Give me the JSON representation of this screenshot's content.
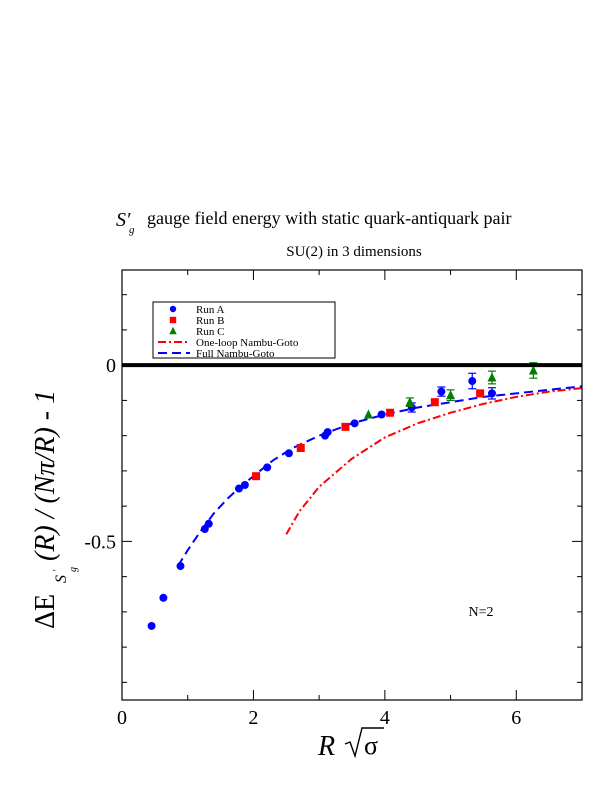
{
  "chart_data": {
    "type": "scatter",
    "title_sym": "S′",
    "title_sub": "g",
    "title": "gauge field energy with static quark-antiquark pair",
    "subtitle": "SU(2) in 3 dimensions",
    "xlabel_main": "R",
    "xlabel_sigma": "σ",
    "ylabel_prefix": "ΔE",
    "ylabel_sub_s": "S",
    "ylabel_sub_g": "g",
    "ylabel_suffix": "(R) / (Nπ/R) - 1",
    "annotation": "N=2",
    "xlim": [
      0,
      7
    ],
    "ylim": [
      -0.95,
      0.27
    ],
    "x_ticks": [
      0,
      2,
      4,
      6
    ],
    "y_ticks": [
      0,
      -0.5
    ],
    "y_tick_labels": [
      "0",
      "-0.5"
    ],
    "grid": false,
    "legend_placement": "top-left",
    "zero_line": 0,
    "colors": {
      "run_a": "#0000ff",
      "run_b": "#ff0000",
      "run_c": "#008000",
      "one_loop": "#ff0000",
      "full_ng": "#0000ff",
      "frame": "#000000"
    },
    "series": [
      {
        "name": "Run A",
        "marker": "circle",
        "color": "#0000ff",
        "x": [
          0.45,
          0.63,
          0.89,
          1.26,
          1.32,
          1.78,
          1.87,
          2.21,
          2.54,
          3.09,
          3.13,
          3.54,
          3.95,
          4.41,
          4.86,
          5.33,
          5.63
        ],
        "y": [
          -0.74,
          -0.66,
          -0.57,
          -0.465,
          -0.45,
          -0.35,
          -0.34,
          -0.29,
          -0.25,
          -0.2,
          -0.19,
          -0.165,
          -0.14,
          -0.12,
          -0.075,
          -0.045,
          -0.08
        ],
        "err": [
          0,
          0,
          0,
          0,
          0,
          0,
          0,
          0,
          0,
          0,
          0,
          0,
          0,
          0.013,
          0.013,
          0.022,
          0.016
        ]
      },
      {
        "name": "Run B",
        "marker": "square",
        "color": "#ff0000",
        "x": [
          2.04,
          2.72,
          3.4,
          4.08,
          4.76,
          5.45
        ],
        "y": [
          -0.315,
          -0.235,
          -0.175,
          -0.135,
          -0.105,
          -0.08
        ],
        "err": [
          0,
          0,
          0,
          0,
          0,
          0
        ]
      },
      {
        "name": "Run C",
        "marker": "triangle",
        "color": "#008000",
        "x": [
          3.75,
          4.38,
          5.0,
          5.63,
          6.26
        ],
        "y": [
          -0.14,
          -0.105,
          -0.085,
          -0.035,
          -0.015
        ],
        "err": [
          0,
          0.012,
          0.015,
          0.018,
          0.022
        ]
      },
      {
        "name": "One-loop Nambu-Goto",
        "line": "dash-dot",
        "color": "#ff0000",
        "x": [
          2.5,
          2.7,
          3.0,
          3.5,
          4.0,
          4.5,
          5.0,
          5.5,
          6.0,
          6.5,
          7.0
        ],
        "y": [
          -0.48,
          -0.415,
          -0.345,
          -0.265,
          -0.205,
          -0.165,
          -0.135,
          -0.11,
          -0.09,
          -0.075,
          -0.065
        ]
      },
      {
        "name": "Full Nambu-Goto",
        "line": "dash",
        "color": "#0000ff",
        "x": [
          0.85,
          1.0,
          1.2,
          1.4,
          1.6,
          1.8,
          2.0,
          2.3,
          2.6,
          3.0,
          3.5,
          4.0,
          4.5,
          5.0,
          5.5,
          6.0,
          6.5,
          7.0
        ],
        "y": [
          -0.57,
          -0.525,
          -0.47,
          -0.42,
          -0.38,
          -0.345,
          -0.315,
          -0.27,
          -0.235,
          -0.2,
          -0.165,
          -0.14,
          -0.12,
          -0.105,
          -0.09,
          -0.08,
          -0.07,
          -0.06
        ]
      }
    ]
  }
}
